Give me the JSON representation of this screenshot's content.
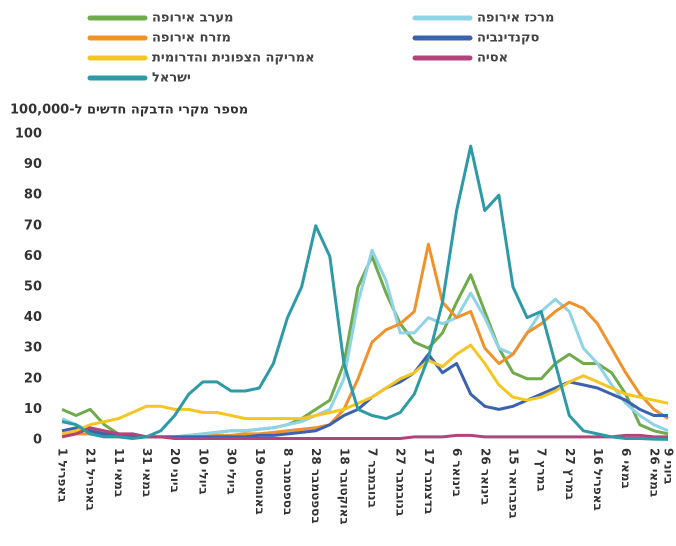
{
  "chart_data": {
    "type": "line",
    "y_axis_title": "מספר מקרי הדבקה חדשים ל-100,000",
    "categories": [
      "1 באפריל",
      null,
      "21 באפריל",
      null,
      "11 במאי",
      null,
      "31 במאי",
      null,
      "20 ביוני",
      null,
      "10 ביולי",
      null,
      "30 ביולי",
      null,
      "19 באוגוסט",
      null,
      "8 בספטמבר",
      null,
      "28 בספטמבר",
      null,
      "18 באוקטובר",
      null,
      "7 בנובמבר",
      null,
      "27 בנובמבר",
      null,
      "17 בדצמבר",
      null,
      "6 בינואר",
      null,
      "26 בינואר",
      null,
      "15 בפברואר",
      null,
      "7 במרץ",
      null,
      "27 במרץ",
      null,
      "16 באפריל",
      null,
      "6 במאי",
      null,
      "26 במאי",
      "9 ביוני"
    ],
    "ylim": [
      0,
      100
    ],
    "yticks": [
      0,
      10,
      20,
      30,
      40,
      50,
      60,
      70,
      80,
      90,
      100
    ],
    "grid": false,
    "series": [
      {
        "name": "מערב אירופה",
        "color": "#6fab4a",
        "values": [
          10,
          8,
          10,
          5,
          2,
          1,
          1,
          1,
          1,
          1.5,
          2,
          2.5,
          3,
          3,
          3.5,
          4,
          5,
          7,
          10,
          13,
          25,
          50,
          60,
          48,
          38,
          32,
          30,
          35,
          45,
          54,
          42,
          30,
          22,
          20,
          20,
          25,
          28,
          25,
          25,
          22,
          15,
          5,
          3,
          2
        ]
      },
      {
        "name": "מרכז אירופה",
        "color": "#8fd3e6",
        "values": [
          7,
          5,
          3,
          2,
          2,
          1.5,
          1,
          1,
          1,
          1.5,
          2,
          2.5,
          3,
          3,
          3.5,
          4,
          5,
          6,
          8,
          10,
          20,
          45,
          62,
          52,
          35,
          35,
          40,
          38,
          40,
          48,
          40,
          30,
          28,
          35,
          42,
          46,
          42,
          30,
          25,
          18,
          12,
          8,
          5,
          3
        ]
      },
      {
        "name": "מזרח אירופה",
        "color": "#f0922b",
        "values": [
          2,
          2,
          2,
          1.5,
          1,
          1,
          1,
          1,
          1,
          1,
          1,
          1.5,
          1.5,
          2,
          2,
          2.5,
          3,
          3.5,
          4,
          5,
          10,
          20,
          32,
          36,
          38,
          42,
          64,
          45,
          40,
          42,
          30,
          25,
          28,
          35,
          38,
          42,
          45,
          43,
          38,
          30,
          22,
          15,
          10,
          7
        ]
      },
      {
        "name": "סקנדינביה",
        "color": "#3b62ae",
        "values": [
          3,
          4,
          3,
          2,
          2,
          1.5,
          1,
          1,
          1,
          1,
          1,
          1,
          1,
          1,
          1.5,
          1.5,
          2,
          2.5,
          3,
          5,
          8,
          10,
          14,
          17,
          19,
          22,
          28,
          22,
          25,
          15,
          11,
          10,
          11,
          13,
          15,
          17,
          19,
          18,
          17,
          15,
          13,
          10,
          8,
          8
        ]
      },
      {
        "name": "אמריקה הצפונית והדרומית",
        "color": "#f5c623",
        "values": [
          2,
          3,
          5,
          6,
          7,
          9,
          11,
          11,
          10,
          10,
          9,
          9,
          8,
          7,
          7,
          7,
          7,
          7,
          8,
          9,
          10,
          12,
          14,
          17,
          20,
          22,
          26,
          24,
          28,
          31,
          25,
          18,
          14,
          13,
          14,
          16,
          19,
          21,
          19,
          17,
          15,
          14,
          13,
          12
        ]
      },
      {
        "name": "אסיה",
        "color": "#b4437b",
        "values": [
          1,
          2,
          4,
          3,
          2,
          2,
          1,
          1,
          0.5,
          0.5,
          0.5,
          0.5,
          0.5,
          0.5,
          0.5,
          0.5,
          0.5,
          0.5,
          0.5,
          0.5,
          0.5,
          0.5,
          0.5,
          0.5,
          0.5,
          1,
          1,
          1,
          1.5,
          1.5,
          1,
          1,
          1,
          1,
          1,
          1,
          1,
          1,
          1,
          1,
          1.5,
          1.5,
          1,
          1
        ]
      },
      {
        "name": "ישראל",
        "color": "#2e9aa6",
        "values": [
          6,
          5,
          2,
          1,
          1,
          0.5,
          1,
          3,
          8,
          15,
          19,
          19,
          16,
          16,
          17,
          25,
          40,
          50,
          70,
          60,
          25,
          10,
          8,
          7,
          9,
          15,
          27,
          45,
          75,
          96,
          75,
          80,
          50,
          40,
          42,
          25,
          8,
          3,
          2,
          1,
          0.5,
          0.5,
          0.3,
          0.2
        ]
      }
    ]
  }
}
